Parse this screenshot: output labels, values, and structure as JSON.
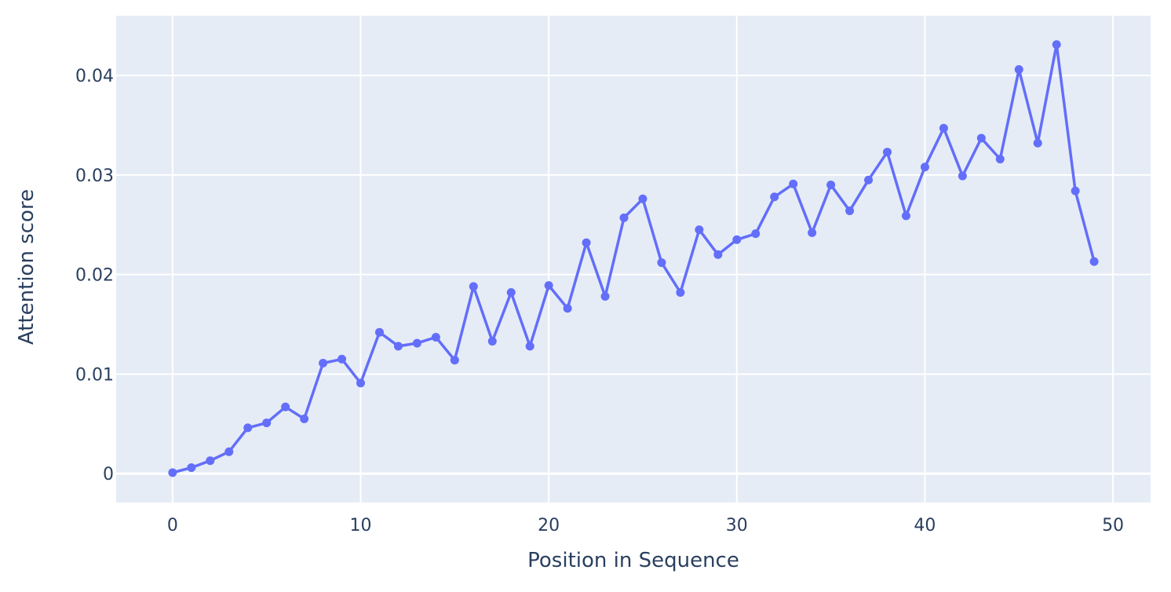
{
  "chart_data": {
    "type": "line",
    "title": "",
    "xlabel": "Position in Sequence",
    "ylabel": "Attention score",
    "xlim": [
      -3,
      52
    ],
    "ylim": [
      -0.0029,
      0.046
    ],
    "x_ticks": [
      0,
      10,
      20,
      30,
      40,
      50
    ],
    "x_tick_labels": [
      "0",
      "10",
      "20",
      "30",
      "40",
      "50"
    ],
    "y_ticks": [
      0,
      0.01,
      0.02,
      0.03,
      0.04
    ],
    "y_tick_labels": [
      "0",
      "0.01",
      "0.02",
      "0.03",
      "0.04"
    ],
    "grid": true,
    "legend": "none",
    "colors": {
      "plot_background": "#e5ecf6",
      "grid": "#ffffff",
      "series": "#636efa",
      "text": "#2a3f5f"
    },
    "series": [
      {
        "mode": "lines+markers",
        "x": [
          0,
          1,
          2,
          3,
          4,
          5,
          6,
          7,
          8,
          9,
          10,
          11,
          12,
          13,
          14,
          15,
          16,
          17,
          18,
          19,
          20,
          21,
          22,
          23,
          24,
          25,
          26,
          27,
          28,
          29,
          30,
          31,
          32,
          33,
          34,
          35,
          36,
          37,
          38,
          39,
          40,
          41,
          42,
          43,
          44,
          45,
          46,
          47,
          48,
          49
        ],
        "y": [
          0.0001,
          0.0006,
          0.0013,
          0.0022,
          0.0046,
          0.0051,
          0.0067,
          0.0055,
          0.0111,
          0.0115,
          0.0091,
          0.0142,
          0.0128,
          0.0131,
          0.0137,
          0.0114,
          0.0188,
          0.0133,
          0.0182,
          0.0128,
          0.0189,
          0.0166,
          0.0232,
          0.0178,
          0.0257,
          0.0276,
          0.0212,
          0.0182,
          0.0245,
          0.022,
          0.0235,
          0.0241,
          0.0278,
          0.0291,
          0.0242,
          0.029,
          0.0264,
          0.0295,
          0.0323,
          0.0259,
          0.0308,
          0.0347,
          0.0299,
          0.0337,
          0.0316,
          0.0406,
          0.0332,
          0.0431,
          0.0284,
          0.0213
        ]
      }
    ]
  }
}
